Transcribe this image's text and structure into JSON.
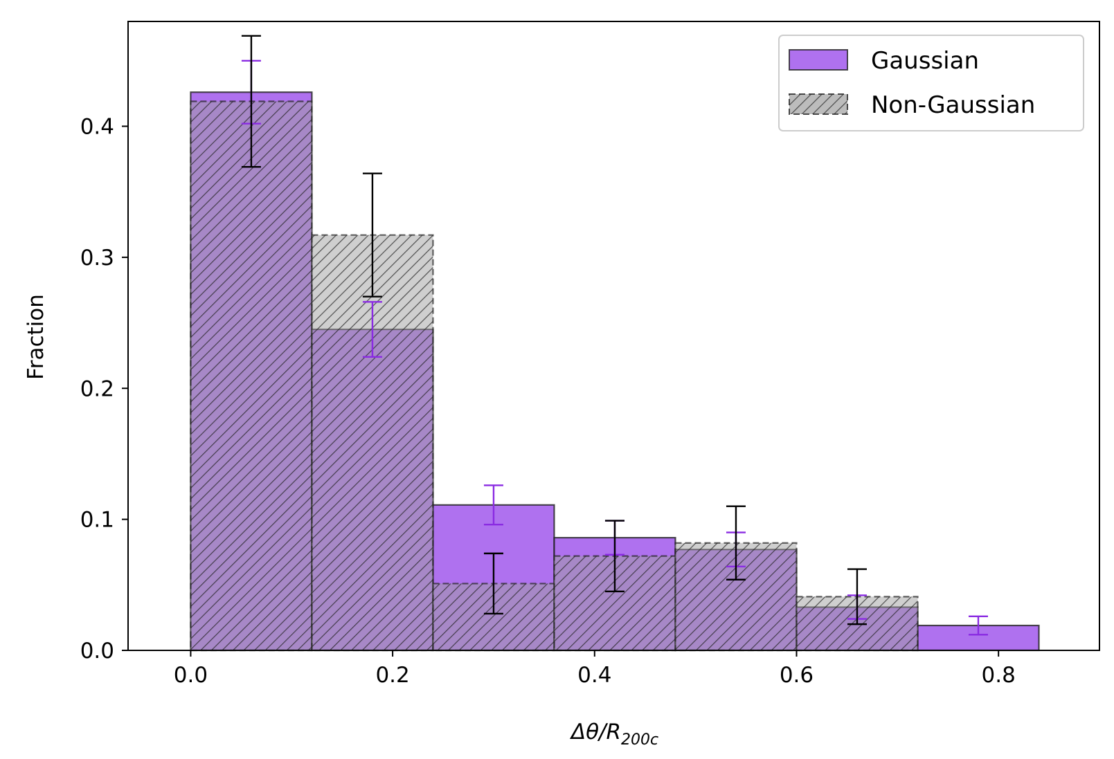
{
  "chart_data": {
    "type": "bar",
    "bin_edges": [
      0.0,
      0.12,
      0.24,
      0.36,
      0.48,
      0.6,
      0.72,
      0.84
    ],
    "xlabel": "Δθ/R200c",
    "ylabel": "Fraction",
    "xlim": [
      -0.062,
      0.9
    ],
    "ylim": [
      0.0,
      0.48
    ],
    "xticks": [
      "0.0",
      "0.2",
      "0.4",
      "0.6",
      "0.8"
    ],
    "xtick_values": [
      0.0,
      0.2,
      0.4,
      0.6,
      0.8
    ],
    "yticks": [
      "0.0",
      "0.1",
      "0.2",
      "0.3",
      "0.4"
    ],
    "ytick_values": [
      0.0,
      0.1,
      0.2,
      0.3,
      0.4
    ],
    "grid": false,
    "legend_position": "top-right",
    "series": [
      {
        "name": "Gaussian",
        "style": "solid",
        "color": "#9b4deb",
        "values": [
          0.426,
          0.245,
          0.111,
          0.086,
          0.077,
          0.033,
          0.019
        ],
        "errors": [
          0.024,
          0.021,
          0.015,
          0.013,
          0.013,
          0.009,
          0.007
        ]
      },
      {
        "name": "Non-Gaussian",
        "style": "hatched",
        "color": "#a0a0a0",
        "values": [
          0.419,
          0.317,
          0.051,
          0.072,
          0.082,
          0.041,
          0.0
        ],
        "errors": [
          0.05,
          0.047,
          0.023,
          0.027,
          0.028,
          0.021,
          0.0
        ]
      }
    ],
    "errorbar_colors": [
      "#8a2be2",
      "#000000"
    ]
  }
}
